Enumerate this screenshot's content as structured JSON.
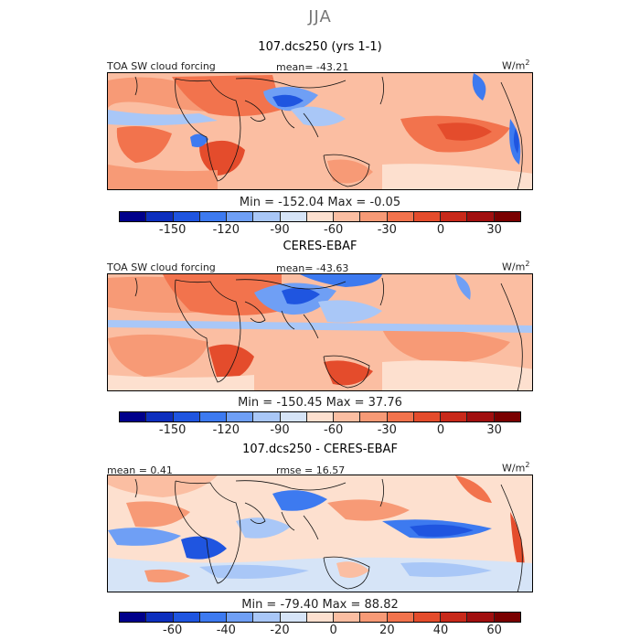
{
  "season": "JJA",
  "panels": [
    {
      "title": "107.dcs250 (yrs 1-1)",
      "left_label": "TOA SW cloud forcing",
      "center_label": "mean= -43.21",
      "units": "W/m",
      "units_exp": "2",
      "minmax": "Min = -152.04  Max =   -0.05",
      "colorbar": {
        "colors": [
          "#00008b",
          "#0d2fbe",
          "#1f55e0",
          "#3d7af0",
          "#6f9ff5",
          "#a9c7f7",
          "#d6e4f7",
          "#fde0cf",
          "#fbbea2",
          "#f79a76",
          "#f2734d",
          "#e44c2c",
          "#c8291a",
          "#a10f0f",
          "#7a0000"
        ],
        "tick_labels": [
          "-150",
          "-120",
          "-90",
          "-60",
          "-30",
          "0",
          "30"
        ]
      }
    },
    {
      "title": "CERES-EBAF",
      "left_label": "TOA SW cloud forcing",
      "center_label": "mean= -43.63",
      "units": "W/m",
      "units_exp": "2",
      "minmax": "Min = -150.45  Max =  37.76",
      "colorbar": {
        "colors": [
          "#00008b",
          "#0d2fbe",
          "#1f55e0",
          "#3d7af0",
          "#6f9ff5",
          "#a9c7f7",
          "#d6e4f7",
          "#fde0cf",
          "#fbbea2",
          "#f79a76",
          "#f2734d",
          "#e44c2c",
          "#c8291a",
          "#a10f0f",
          "#7a0000"
        ],
        "tick_labels": [
          "-150",
          "-120",
          "-90",
          "-60",
          "-30",
          "0",
          "30"
        ]
      }
    },
    {
      "title": "107.dcs250 - CERES-EBAF",
      "left_label": "mean =   0.41",
      "center_label": "rmse =  16.57",
      "units": "W/m",
      "units_exp": "2",
      "minmax": "Min = -79.40  Max =  88.82",
      "colorbar": {
        "colors": [
          "#00008b",
          "#0d2fbe",
          "#1f55e0",
          "#3d7af0",
          "#6f9ff5",
          "#a9c7f7",
          "#d6e4f7",
          "#fde0cf",
          "#fbbea2",
          "#f79a76",
          "#f2734d",
          "#e44c2c",
          "#c8291a",
          "#a10f0f",
          "#7a0000"
        ],
        "tick_labels": [
          "-60",
          "-40",
          "-20",
          "0",
          "20",
          "40",
          "60"
        ]
      }
    }
  ]
}
